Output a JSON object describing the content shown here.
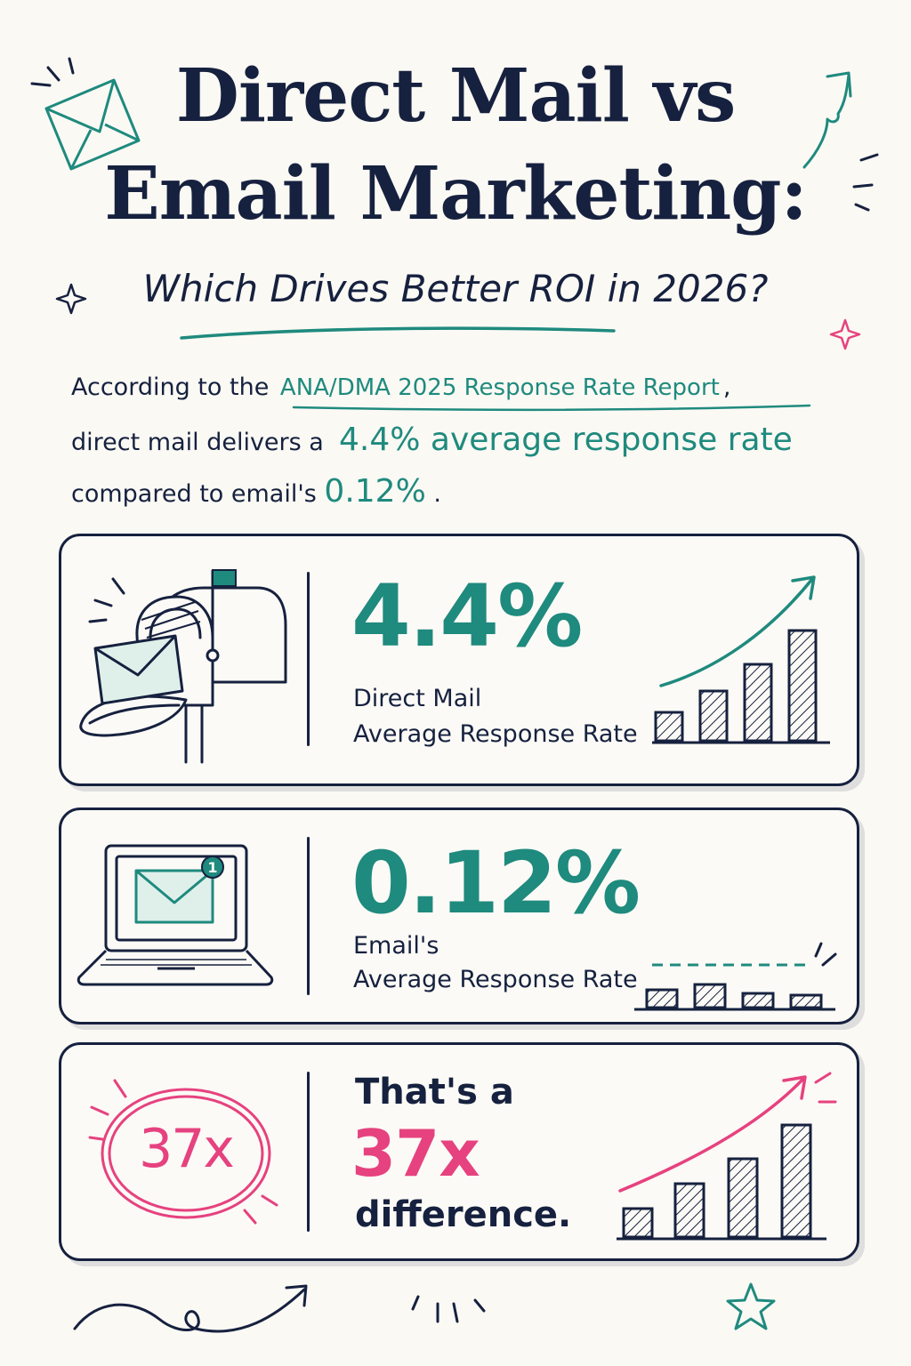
{
  "header": {
    "title_line1": "Direct Mail vs",
    "title_line2": "Email Marketing:",
    "subtitle": "Which Drives Better ROI in 2026?"
  },
  "intro": {
    "line1_prefix": "According to the",
    "source_link": "ANA/DMA 2025 Response Rate Report",
    "line1_suffix": ",",
    "line2_prefix": "direct mail delivers a",
    "line2_highlight": "4.4% average response rate",
    "line3_prefix": "compared to email's",
    "line3_highlight": "0.12%",
    "line3_suffix": "."
  },
  "cards": {
    "direct_mail": {
      "value": "4.4%",
      "label_line1": "Direct Mail",
      "label_line2": "Average Response Rate",
      "icon": "mailbox-icon",
      "trend": "rising"
    },
    "email": {
      "value": "0.12%",
      "label_line1": "Email's",
      "label_line2": "Average Response Rate",
      "icon": "laptop-email-icon",
      "notification_count": "1",
      "trend": "flat"
    },
    "difference": {
      "badge": "37x",
      "text_line1": "That's a",
      "text_big": "37x",
      "text_line3": "difference."
    }
  },
  "colors": {
    "navy": "#16213f",
    "teal": "#1f8a7e",
    "pink": "#e6427f",
    "background": "#fbf9f4"
  }
}
